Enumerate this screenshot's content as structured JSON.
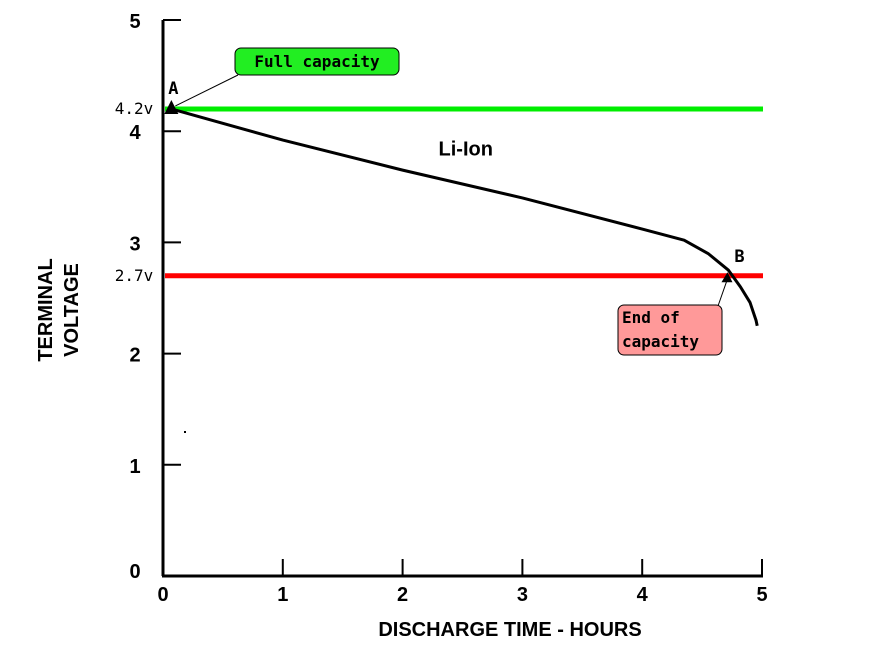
{
  "chart_data": {
    "type": "line",
    "title": "",
    "xlabel": "DISCHARGE TIME - HOURS",
    "ylabel": [
      "TERMINAL",
      "VOLTAGE"
    ],
    "xlim": [
      0,
      5
    ],
    "ylim": [
      0,
      5
    ],
    "x_ticks": [
      "0",
      "1",
      "2",
      "3",
      "4",
      "5"
    ],
    "y_ticks": [
      "0",
      "1",
      "2",
      "3",
      "4",
      "5"
    ],
    "grid": false,
    "series": [
      {
        "name": "Li-Ion",
        "color": "#000000",
        "x": [
          0.07,
          1.0,
          2.0,
          3.0,
          4.0,
          4.35,
          4.55,
          4.72,
          4.82,
          4.9,
          4.95,
          4.96
        ],
        "y": [
          4.2,
          3.92,
          3.65,
          3.4,
          3.12,
          3.02,
          2.9,
          2.75,
          2.6,
          2.46,
          2.3,
          2.25
        ]
      }
    ],
    "reference_lines": [
      {
        "label": "4.2v",
        "value": 4.2,
        "color": "#00ee00"
      },
      {
        "label": "2.7v",
        "value": 2.7,
        "color": "#ff0000"
      }
    ],
    "annotations": [
      {
        "point": "A",
        "x": 0.07,
        "y": 4.2,
        "callout": "Full capacity",
        "callout_color": "#22ee22"
      },
      {
        "point": "B",
        "x": 4.72,
        "y": 2.75,
        "callout": "End of capacity",
        "callout_lines": [
          "End of",
          "capacity"
        ],
        "callout_color": "#ff9999"
      }
    ],
    "series_label": {
      "text": "Li-Ion",
      "x": 2.3,
      "y": 3.78
    }
  }
}
